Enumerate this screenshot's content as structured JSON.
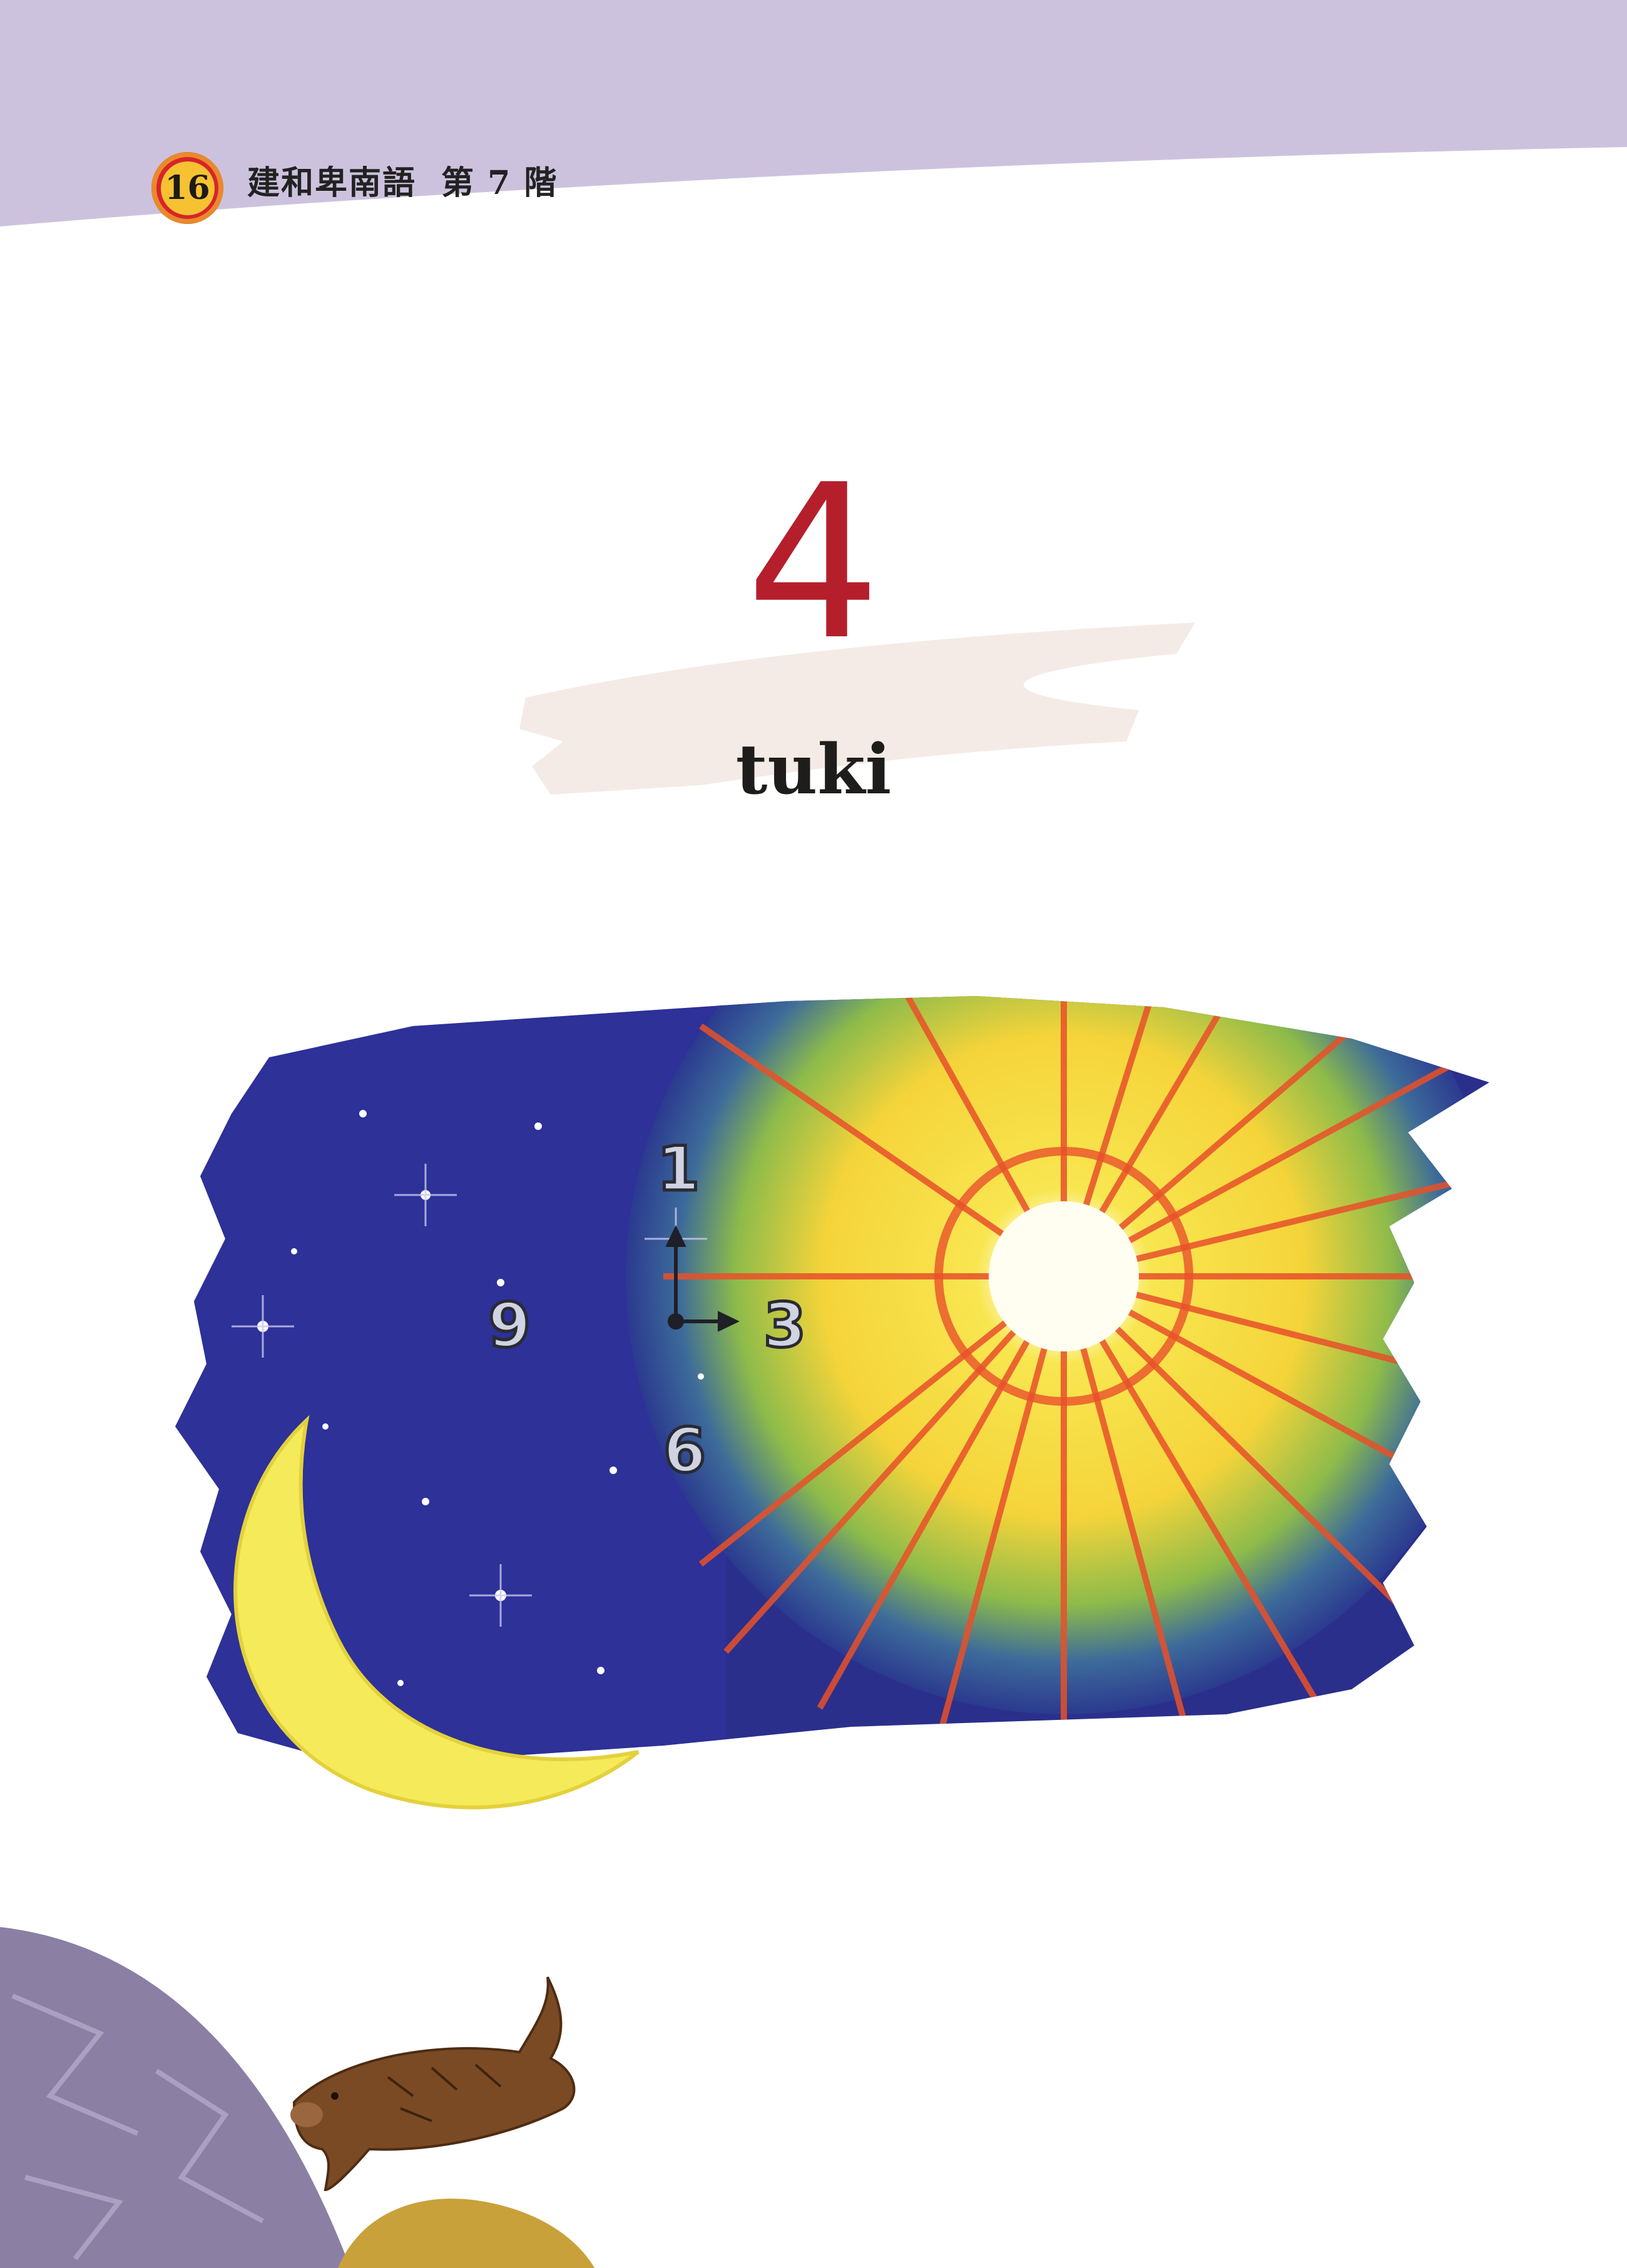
{
  "header": {
    "page_number": "16",
    "book_title": "建和卑南語",
    "level": "第 7 階"
  },
  "lesson": {
    "number": "4",
    "title": "tuki"
  },
  "illustration": {
    "clock_labels": {
      "twelve": "1",
      "three": "3",
      "six": "6",
      "nine": "9"
    },
    "icons": [
      "crescent-moon-icon",
      "sun-icon",
      "stars-icon",
      "clock-hands-icon",
      "boar-icon"
    ]
  },
  "colors": {
    "header_band": "#cdc2de",
    "lesson_number": "#b51f2c",
    "night_sky": "#2a2f8c",
    "sun": "#f6e14a",
    "sun_rays": "#e8512a",
    "moon": "#f4ea5a",
    "corner_circle": "#8b7fa4",
    "corner_gold": "#c9a13a",
    "boar": "#7a4a24"
  }
}
